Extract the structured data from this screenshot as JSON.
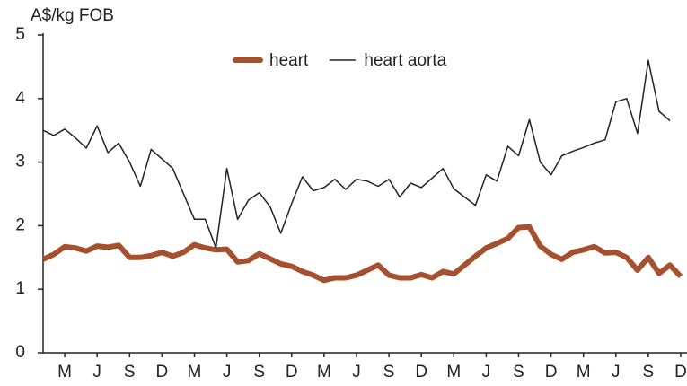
{
  "chart_data": {
    "type": "line",
    "y_label": "A$/kg FOB",
    "categories": [
      null,
      null,
      "M",
      null,
      null,
      "J",
      null,
      null,
      "S",
      null,
      null,
      "D",
      null,
      null,
      "M",
      null,
      null,
      "J",
      null,
      null,
      "S",
      null,
      null,
      "D",
      null,
      null,
      "M",
      null,
      null,
      "J",
      null,
      null,
      "S",
      null,
      null,
      "D",
      null,
      null,
      "M",
      null,
      null,
      "J",
      null,
      null,
      "S",
      null,
      null,
      "D",
      null,
      null,
      "M",
      null,
      null,
      "J",
      null,
      null,
      "S",
      null,
      null,
      "D"
    ],
    "series": [
      {
        "name": "heart",
        "color": "#a5502e",
        "width": 6,
        "values": [
          1.47,
          1.55,
          1.67,
          1.65,
          1.6,
          1.68,
          1.66,
          1.69,
          1.5,
          1.5,
          1.53,
          1.58,
          1.52,
          1.58,
          1.7,
          1.65,
          1.62,
          1.63,
          1.43,
          1.45,
          1.56,
          1.48,
          1.4,
          1.36,
          1.28,
          1.22,
          1.14,
          1.18,
          1.18,
          1.22,
          1.3,
          1.38,
          1.22,
          1.18,
          1.18,
          1.23,
          1.18,
          1.28,
          1.24,
          1.38,
          1.52,
          1.65,
          1.72,
          1.8,
          1.97,
          1.98,
          1.68,
          1.55,
          1.47,
          1.58,
          1.62,
          1.67,
          1.57,
          1.58,
          1.5,
          1.3,
          1.5,
          1.25,
          1.38,
          1.2
        ]
      },
      {
        "name": "heart aorta",
        "color": "#222222",
        "width": 1.5,
        "values": [
          3.5,
          3.42,
          3.52,
          3.38,
          3.22,
          3.57,
          3.15,
          3.3,
          3.0,
          2.62,
          3.2,
          3.05,
          2.9,
          2.5,
          2.1,
          2.1,
          1.65,
          2.9,
          2.1,
          2.4,
          2.52,
          2.3,
          1.88,
          2.35,
          2.77,
          2.55,
          2.6,
          2.73,
          2.57,
          2.73,
          2.7,
          2.62,
          2.73,
          2.45,
          2.67,
          2.6,
          2.75,
          2.9,
          2.58,
          2.45,
          2.32,
          2.8,
          2.7,
          3.25,
          3.1,
          3.67,
          3.0,
          2.8,
          3.1,
          3.17,
          3.23,
          3.3,
          3.35,
          3.95,
          4.0,
          3.45,
          4.6,
          3.8,
          3.65,
          null
        ]
      }
    ],
    "ylim": [
      0,
      5
    ],
    "yticks": [
      0,
      1,
      2,
      3,
      4,
      5
    ],
    "grid": false,
    "legend": "top"
  }
}
